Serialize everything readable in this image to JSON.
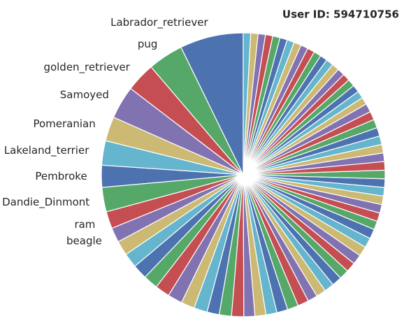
{
  "chart_data": {
    "type": "pie",
    "title": "User ID: 594710756",
    "categories": [
      "Labrador_retriever",
      "pug",
      "golden_retriever",
      "Samoyed",
      "Pomeranian",
      "Lakeland_terrier",
      "Pembroke",
      "Dandie_Dinmont",
      "ram",
      "beagle",
      null,
      null,
      null,
      null,
      null,
      null,
      null,
      null,
      null,
      null,
      null,
      null,
      null,
      null,
      null,
      null,
      null,
      null,
      null,
      null,
      null,
      null,
      null,
      null,
      null,
      null,
      null,
      null,
      null,
      null,
      null,
      null,
      null,
      null,
      null,
      null,
      null,
      null,
      null,
      null,
      null,
      null,
      null,
      null,
      null,
      null,
      null,
      null,
      null,
      null,
      null,
      null,
      null,
      null,
      null,
      null,
      null,
      null,
      null,
      null,
      null,
      null
    ],
    "values": [
      26,
      14.5,
      12,
      13.5,
      10,
      10,
      9,
      10,
      7,
      6,
      6,
      6,
      6,
      6,
      6,
      6,
      5.5,
      5.5,
      5,
      5,
      5,
      4.5,
      4.5,
      4.5,
      4.5,
      4.5,
      4.5,
      4,
      4,
      4,
      4,
      4,
      4,
      4,
      4,
      4,
      4,
      3.5,
      3.5,
      3.5,
      3.5,
      3.5,
      3.5,
      3.5,
      3.5,
      3.5,
      3.5,
      3.5,
      3.5,
      3.5,
      3.5,
      3.5,
      3,
      3,
      3,
      3,
      3,
      3,
      3,
      3,
      3,
      3,
      3,
      3,
      3,
      3,
      3,
      3,
      3,
      3,
      3,
      3
    ],
    "colors": [
      "#4c72b0",
      "#55a868",
      "#c44e52",
      "#8172b2",
      "#ccb974",
      "#64b5cd"
    ]
  }
}
